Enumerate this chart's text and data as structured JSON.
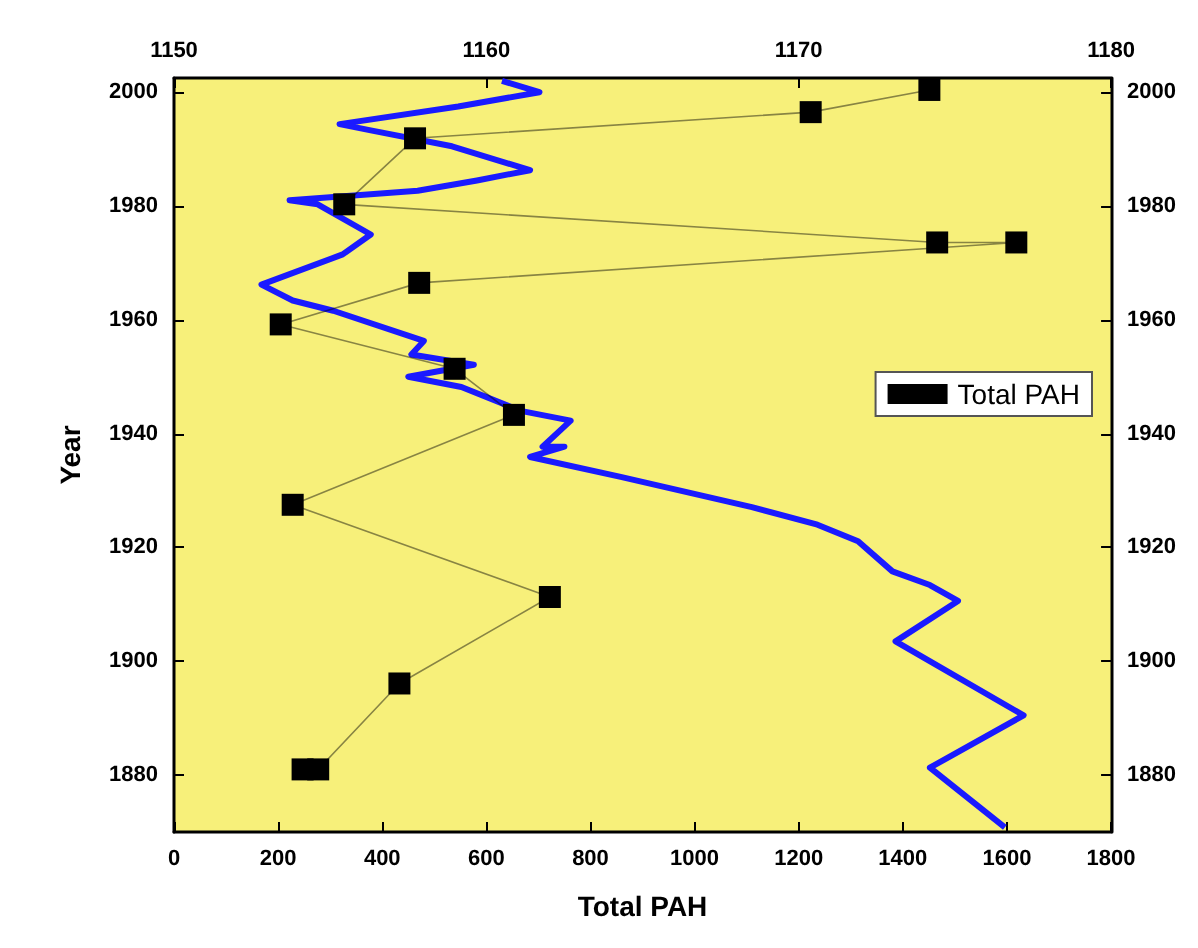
{
  "chart_data": {
    "type": "line",
    "xlabel": "Total PAH",
    "ylabel": "Year",
    "xlim": [
      0,
      1800
    ],
    "xticks": [
      0,
      200,
      400,
      600,
      800,
      1000,
      1200,
      1400,
      1600,
      1800
    ],
    "x2lim": [
      1150,
      1180
    ],
    "x2ticks": [
      1150,
      1160,
      1170,
      1180
    ],
    "ylim": [
      1870,
      2002.5
    ],
    "yticks": [
      1880,
      1900,
      1920,
      1940,
      1960,
      1980,
      2000
    ],
    "y2lim": [
      1870,
      2002.5
    ],
    "y2ticks": [
      1880,
      1900,
      1920,
      1940,
      1960,
      1980,
      2000
    ],
    "grid": false,
    "legend": "right",
    "series": [
      {
        "name": "Total PAH",
        "color": "#000000",
        "marker": "square",
        "x": [
          1451,
          1223,
          463,
          327,
          1466,
          1618,
          471,
          205,
          539,
          653,
          228,
          722,
          433,
          277,
          247
        ],
        "values": [
          2000.4,
          1996.5,
          1991.9,
          1980.3,
          1973.6,
          1973.6,
          1966.5,
          1959.2,
          1951.4,
          1943.3,
          1927.5,
          1911.3,
          1896.1,
          1881,
          1881
        ]
      },
      {
        "color": "#1a1aff",
        "marker": "none",
        "axis": "x2",
        "x": [
          1160.5,
          1161.7,
          1159.1,
          1155.3,
          1156.3,
          1158.9,
          1161.4,
          1159.7,
          1157.8,
          1153.7,
          1154.6,
          1156.3,
          1155.4,
          1152.8,
          1153.8,
          1155.1,
          1158,
          1157.6,
          1159.6,
          1157.5,
          1159.2,
          1161.1,
          1162.7,
          1161.8,
          1162.5,
          1161.4,
          1164.3,
          1168.5,
          1170.6,
          1171.9,
          1173,
          1174.2,
          1175.1,
          1173.1,
          1177.2,
          1174.2,
          1176.6
        ],
        "values": [
          2002,
          2000,
          1997.5,
          1994.4,
          1993.3,
          1990.5,
          1986.3,
          1984.5,
          1982.7,
          1981,
          1980.3,
          1975,
          1971.5,
          1966.2,
          1963.4,
          1961.6,
          1956.3,
          1953.9,
          1952.1,
          1950,
          1948.2,
          1944,
          1942.3,
          1937.7,
          1937.7,
          1935.9,
          1932.4,
          1927.1,
          1924,
          1921.1,
          1915.8,
          1913.4,
          1910.6,
          1903.5,
          1890.5,
          1881.3,
          1870.8
        ]
      }
    ]
  }
}
